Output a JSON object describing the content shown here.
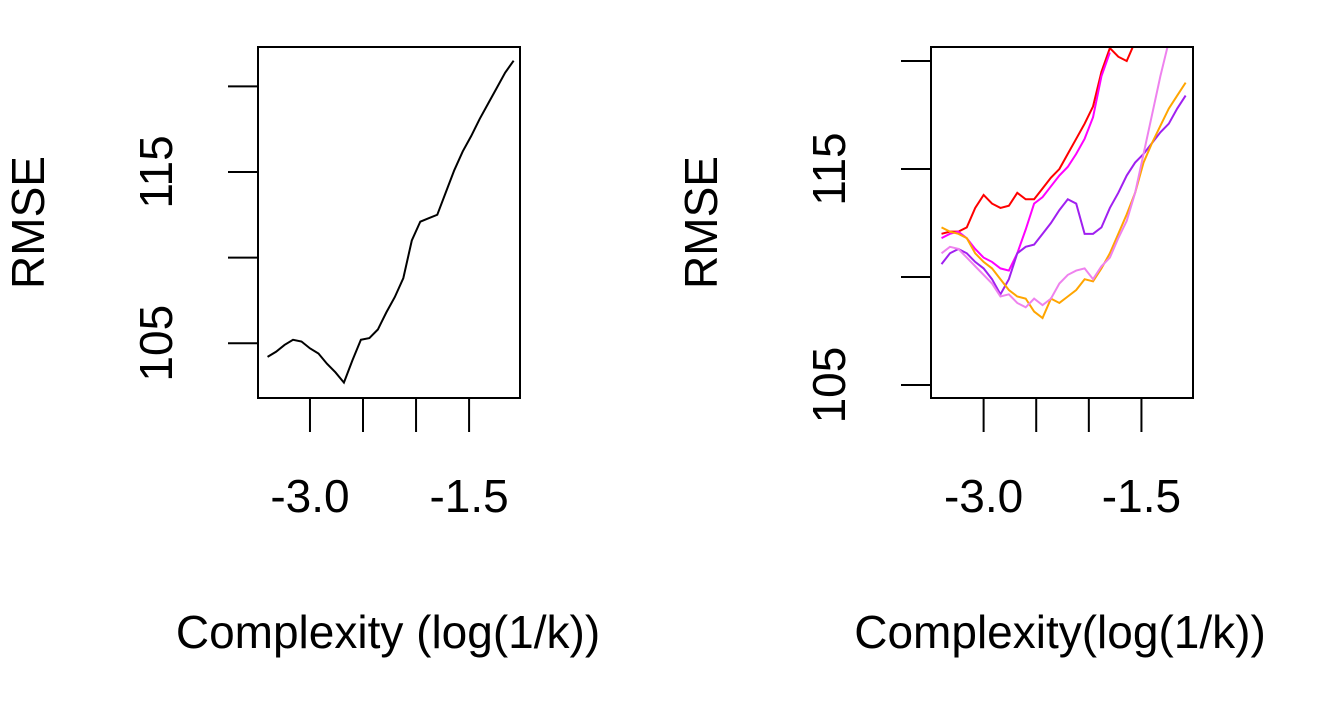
{
  "chart_data": [
    {
      "type": "line",
      "ylabel": "RMSE",
      "xlabel": "Complexity (log(1/k))",
      "xlim": [
        -3.49,
        -1.02
      ],
      "ylim": [
        101.8,
        122.3
      ],
      "xticks": [
        {
          "value": -3,
          "label": "-3.0"
        },
        {
          "value": -1.5,
          "label": "-1.5"
        }
      ],
      "xticks_minor": [
        -2.5,
        -2
      ],
      "yticks": [
        105,
        115
      ],
      "yticks_minor": [
        110,
        120
      ],
      "x": [
        -3.4,
        -3.32,
        -3.24,
        -3.16,
        -3.08,
        -3.0,
        -2.92,
        -2.84,
        -2.76,
        -2.68,
        -2.6,
        -2.52,
        -2.44,
        -2.36,
        -2.28,
        -2.2,
        -2.12,
        -2.04,
        -1.96,
        -1.88,
        -1.8,
        -1.72,
        -1.64,
        -1.56,
        -1.48,
        -1.4,
        -1.32,
        -1.24,
        -1.16,
        -1.08
      ],
      "series": [
        {
          "color": "#000000",
          "values": [
            104.2,
            104.5,
            104.9,
            105.2,
            105.1,
            104.7,
            104.4,
            103.8,
            103.3,
            102.7,
            104.0,
            105.2,
            105.3,
            105.8,
            106.8,
            107.7,
            108.8,
            111.0,
            112.1,
            112.3,
            112.5,
            113.8,
            115.1,
            116.2,
            117.1,
            118.1,
            119.0,
            119.9,
            120.8,
            121.5
          ]
        }
      ]
    },
    {
      "type": "line",
      "ylabel": "RMSE",
      "xlabel": "Complexity(log(1/k))",
      "xlim": [
        -3.5,
        -1.01
      ],
      "ylim": [
        104.4,
        120.65
      ],
      "xticks": [
        {
          "value": -3,
          "label": "-3.0"
        },
        {
          "value": -1.5,
          "label": "-1.5"
        }
      ],
      "xticks_minor": [
        -2.5,
        -2
      ],
      "yticks": [
        105,
        115
      ],
      "yticks_minor": [
        110,
        120
      ],
      "x": [
        -3.4,
        -3.32,
        -3.24,
        -3.16,
        -3.08,
        -3.0,
        -2.92,
        -2.84,
        -2.76,
        -2.68,
        -2.6,
        -2.52,
        -2.44,
        -2.36,
        -2.28,
        -2.2,
        -2.12,
        -2.04,
        -1.96,
        -1.88,
        -1.8,
        -1.72,
        -1.64,
        -1.56,
        -1.48,
        -1.4,
        -1.32,
        -1.24,
        -1.16,
        -1.08
      ],
      "series": [
        {
          "color": "#ff0000",
          "values": [
            112.0,
            112.1,
            112.1,
            112.3,
            113.2,
            113.8,
            113.4,
            113.2,
            113.3,
            113.9,
            113.6,
            113.6,
            114.1,
            114.6,
            115.0,
            115.7,
            116.4,
            117.1,
            117.9,
            119.5,
            120.6,
            120.2,
            120.0,
            120.9,
            null,
            null,
            null,
            null,
            null,
            null
          ]
        },
        {
          "color": "#ff00ff",
          "values": [
            111.8,
            112.0,
            112.1,
            111.8,
            111.3,
            110.9,
            110.7,
            110.4,
            110.3,
            111.1,
            112.2,
            113.4,
            113.7,
            114.2,
            114.7,
            115.1,
            115.7,
            116.4,
            117.4,
            119.3,
            120.4,
            null,
            null,
            null,
            null,
            null,
            null,
            null,
            null,
            null
          ]
        },
        {
          "color": "#a020f0",
          "values": [
            110.6,
            111.1,
            111.3,
            111.1,
            110.7,
            110.4,
            109.9,
            109.2,
            109.9,
            111.1,
            111.4,
            111.5,
            112.0,
            112.5,
            113.1,
            113.6,
            113.4,
            112.0,
            112.0,
            112.3,
            113.2,
            113.9,
            114.7,
            115.3,
            115.7,
            116.2,
            116.7,
            117.1,
            117.8,
            118.4
          ]
        },
        {
          "color": "#ffa500",
          "values": [
            112.3,
            112.1,
            112.0,
            111.8,
            111.1,
            110.7,
            110.4,
            109.9,
            109.4,
            109.1,
            109.0,
            108.4,
            108.1,
            109.0,
            108.8,
            109.1,
            109.4,
            109.9,
            109.8,
            110.4,
            111.1,
            112.0,
            112.9,
            113.9,
            115.3,
            116.2,
            117.0,
            117.8,
            118.4,
            119.0
          ]
        },
        {
          "color": "#ee82ee",
          "values": [
            111.1,
            111.4,
            111.3,
            110.9,
            110.5,
            110.1,
            109.7,
            109.1,
            109.2,
            108.8,
            108.6,
            109.0,
            108.7,
            109.0,
            109.7,
            110.1,
            110.3,
            110.4,
            109.9,
            110.5,
            110.9,
            111.8,
            112.6,
            113.9,
            115.7,
            117.5,
            119.3,
            120.9,
            null,
            null
          ]
        }
      ]
    }
  ]
}
